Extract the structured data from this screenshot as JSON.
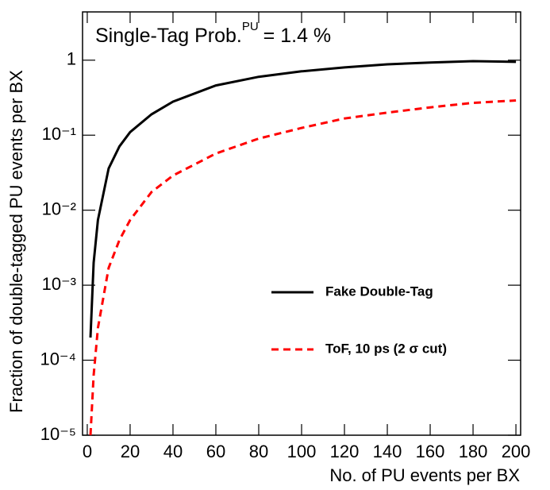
{
  "chart_data": {
    "type": "line",
    "title": {
      "main": "Single-Tag Prob.",
      "superscript": "PU",
      "suffix": "= 1.4 %"
    },
    "xlabel": "No. of PU events per BX",
    "ylabel": "Fraction of double-tagged PU events per BX",
    "log_y": true,
    "xlim": [
      -2.2,
      202.2
    ],
    "ylim": [
      1e-05,
      4.4
    ],
    "xticks": [
      0,
      20,
      40,
      60,
      80,
      100,
      120,
      140,
      160,
      180,
      200
    ],
    "yticks": [
      {
        "value": 1e-05,
        "label": "10⁻⁵"
      },
      {
        "value": 0.0001,
        "label": "10⁻⁴"
      },
      {
        "value": 0.001,
        "label": "10⁻³"
      },
      {
        "value": 0.01,
        "label": "10⁻²"
      },
      {
        "value": 0.1,
        "label": "10⁻¹"
      },
      1
    ],
    "legend": "lower right",
    "series": [
      {
        "name": "Fake Double-Tag",
        "color": "#000000",
        "dash": "solid",
        "x": [
          1.5,
          3,
          5,
          10,
          15,
          20,
          30,
          40,
          60,
          80,
          100,
          120,
          140,
          160,
          180,
          200
        ],
        "values": [
          0.0002,
          0.002,
          0.0074,
          0.036,
          0.071,
          0.11,
          0.19,
          0.28,
          0.46,
          0.6,
          0.71,
          0.8,
          0.88,
          0.93,
          0.97,
          0.95
        ]
      },
      {
        "name": "ToF, 10 ps (2 σ cut)",
        "color": "#ff0000",
        "dash": "dashed",
        "x": [
          1.5,
          3,
          5,
          10,
          15,
          20,
          30,
          40,
          60,
          80,
          100,
          120,
          140,
          160,
          180,
          200
        ],
        "values": [
          1e-05,
          6.3e-05,
          0.00027,
          0.0017,
          0.004,
          0.0074,
          0.0175,
          0.029,
          0.057,
          0.09,
          0.125,
          0.167,
          0.2,
          0.235,
          0.27,
          0.29
        ]
      }
    ]
  }
}
